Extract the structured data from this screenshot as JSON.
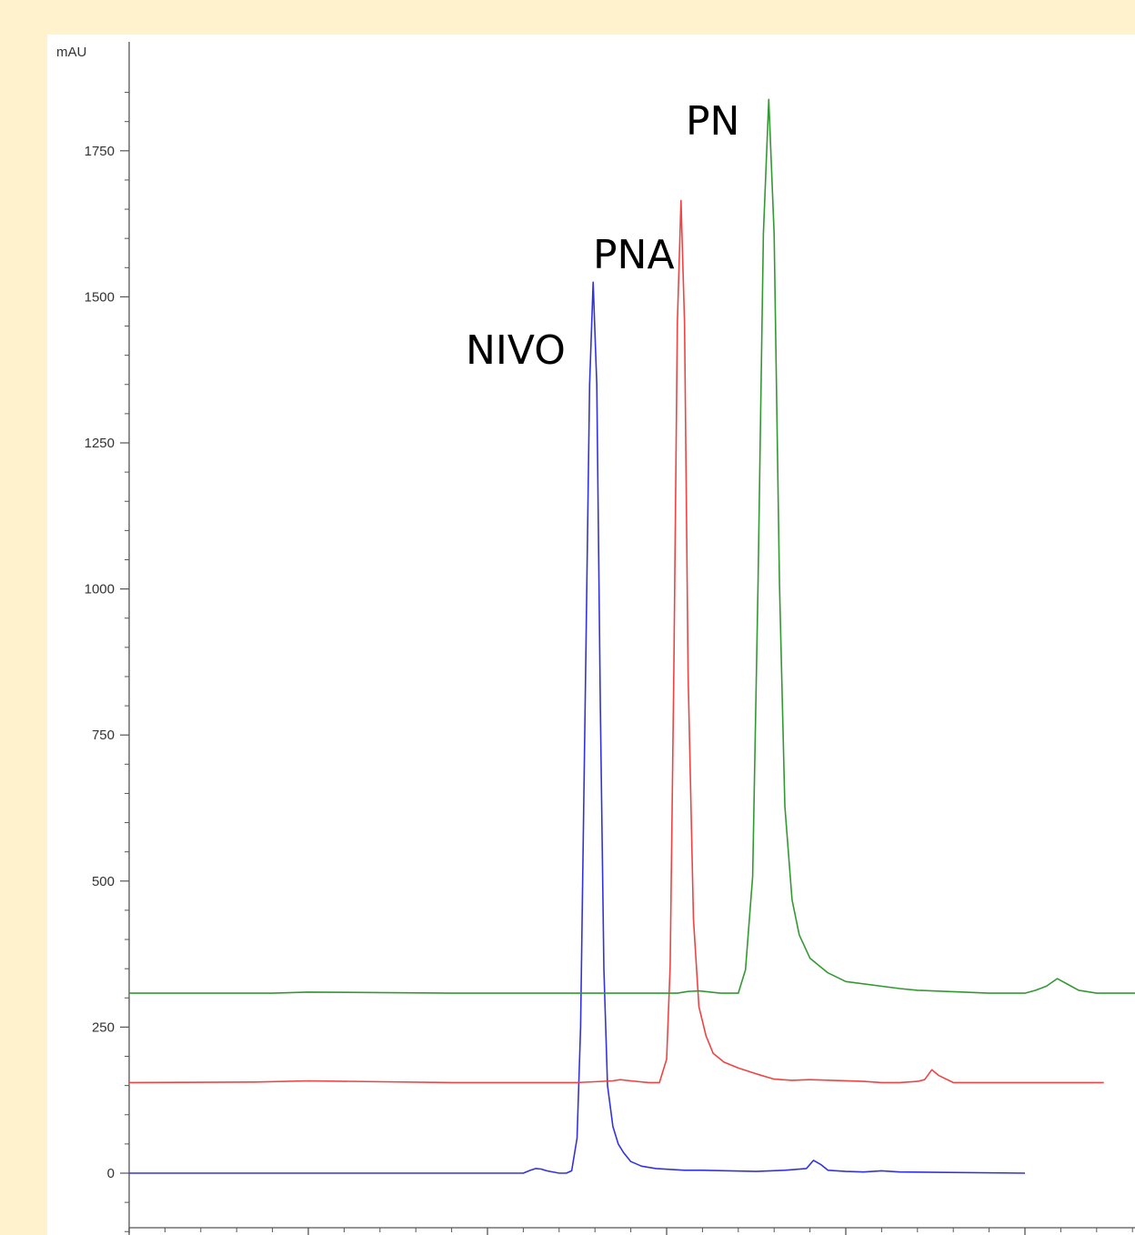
{
  "chart_data": {
    "type": "line",
    "ylabel": "mAU",
    "ylim": [
      -100,
      1880
    ],
    "xlim": [
      0,
      28.6
    ],
    "y_ticks": [
      0,
      250,
      500,
      750,
      1000,
      1250,
      1500,
      1750
    ],
    "y_tick_labels": [
      "0",
      "250",
      "500",
      "750",
      "1000",
      "1250",
      "1500",
      "1750"
    ],
    "y_minor_step": 50,
    "x_major_ticks": [
      0,
      5,
      10,
      15,
      20,
      25
    ],
    "x_minor_step": 1,
    "grid": false,
    "legend": "none",
    "annotations": [
      {
        "text": "NIVO",
        "series": 0
      },
      {
        "text": "PNA",
        "series": 1
      },
      {
        "text": "PN",
        "series": 2
      }
    ],
    "series": [
      {
        "name": "NIVO",
        "color": "#3333dd",
        "x": [
          0,
          11.0,
          11.2,
          11.35,
          11.5,
          11.65,
          12.0,
          12.2,
          12.35,
          12.5,
          12.6,
          12.75,
          12.85,
          12.95,
          13.05,
          13.15,
          13.25,
          13.35,
          13.5,
          13.65,
          13.8,
          14.0,
          14.3,
          14.7,
          15.5,
          16.0,
          17.5,
          18.3,
          18.9,
          19.1,
          19.3,
          19.5,
          20.0,
          20.5,
          21.0,
          21.5,
          25.0
        ],
        "y": [
          0,
          0,
          5,
          8,
          7,
          4,
          0,
          0,
          4,
          60,
          250,
          900,
          1350,
          1525,
          1350,
          800,
          350,
          150,
          80,
          50,
          35,
          20,
          12,
          8,
          5,
          5,
          3,
          5,
          8,
          22,
          15,
          5,
          3,
          2,
          4,
          2,
          0
        ]
      },
      {
        "name": "PNA",
        "color": "#ee4444",
        "x": [
          0,
          3.5,
          5.0,
          9.0,
          12.5,
          13.5,
          13.7,
          14.0,
          14.5,
          14.8,
          15.0,
          15.1,
          15.2,
          15.3,
          15.4,
          15.5,
          15.6,
          15.75,
          15.9,
          16.1,
          16.3,
          16.6,
          17.0,
          17.5,
          18.0,
          18.5,
          19.0,
          20.5,
          21.0,
          21.5,
          22.0,
          22.2,
          22.4,
          22.6,
          23.0,
          25.0,
          27.2
        ],
        "y": [
          0,
          1,
          3,
          0,
          0,
          3,
          5,
          3,
          0,
          0,
          40,
          200,
          700,
          1300,
          1510,
          1300,
          700,
          280,
          130,
          80,
          50,
          35,
          25,
          15,
          6,
          4,
          5,
          2,
          0,
          0,
          2,
          5,
          22,
          12,
          0,
          0,
          0
        ]
      },
      {
        "name": "PN",
        "color": "#339933",
        "x": [
          0,
          4.0,
          5.0,
          9.0,
          14.0,
          15.3,
          15.6,
          15.9,
          16.5,
          17.0,
          17.2,
          17.4,
          17.55,
          17.7,
          17.85,
          18.0,
          18.15,
          18.3,
          18.5,
          18.7,
          19.0,
          19.5,
          20.0,
          21.5,
          22.0,
          24.0,
          25.0,
          25.3,
          25.6,
          25.9,
          26.2,
          26.5,
          27.0,
          28.6
        ],
        "y": [
          0,
          0,
          2,
          0,
          0,
          0,
          3,
          4,
          0,
          0,
          40,
          200,
          700,
          1300,
          1530,
          1300,
          700,
          320,
          160,
          100,
          60,
          35,
          20,
          8,
          5,
          0,
          0,
          5,
          12,
          25,
          15,
          5,
          0,
          0
        ]
      }
    ],
    "offsets": [
      0,
      155,
      308
    ]
  }
}
